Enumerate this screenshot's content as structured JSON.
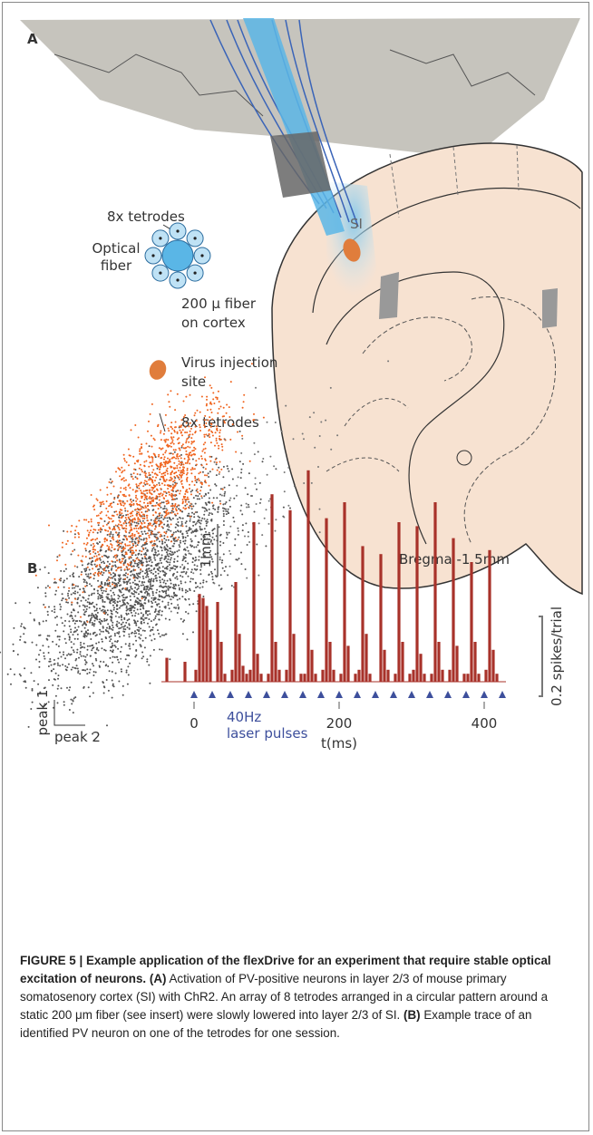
{
  "panel_a": {
    "label": "A",
    "inset_label_tetrodes": "8x tetrodes",
    "inset_label_fiber": [
      "Optical",
      "fiber"
    ],
    "legend_fiber": [
      "200 μ fiber",
      "on cortex"
    ],
    "legend_virus": [
      "Virus injection",
      "site"
    ],
    "legend_tetrodes": "8x tetrodes",
    "region": "SI",
    "scale": "1mm",
    "bregma": "Bregma -1.5mm"
  },
  "panel_b": {
    "label": "B",
    "axis_peak1": "peak 1",
    "axis_peak2": "peak 2"
  },
  "chart_data": {
    "type": "histogram",
    "color": "#a8322a",
    "pulse_color": "#3d4f9c",
    "bins": [
      -40,
      -35,
      -30,
      -25,
      -20,
      -15,
      -10,
      -5,
      0,
      5,
      10,
      15,
      20,
      25,
      30,
      35,
      40,
      45,
      50,
      55,
      60,
      65,
      70,
      75,
      80,
      85,
      90,
      95,
      100,
      105,
      110,
      115,
      120,
      125,
      130,
      135,
      140,
      145,
      150,
      155,
      160,
      165,
      170,
      175,
      180,
      185,
      190,
      195,
      200,
      205,
      210,
      215,
      220,
      225,
      230,
      235,
      240,
      245,
      250,
      255,
      260,
      265,
      270,
      275,
      280,
      285,
      290,
      295,
      300,
      305,
      310,
      315,
      320,
      325,
      330,
      335,
      340,
      345,
      350,
      355,
      360,
      365,
      370,
      375,
      380,
      385,
      390,
      395,
      400,
      405,
      410,
      415,
      420,
      425
    ],
    "values": [
      0.06,
      0,
      0,
      0,
      0,
      0.05,
      0,
      0,
      0.03,
      0.22,
      0.21,
      0.19,
      0.13,
      0,
      0.2,
      0.1,
      0.02,
      0,
      0.03,
      0.25,
      0.12,
      0.04,
      0.02,
      0.03,
      0.4,
      0.07,
      0.02,
      0,
      0.02,
      0.47,
      0.1,
      0.03,
      0,
      0.03,
      0.43,
      0.12,
      0,
      0.02,
      0.02,
      0.53,
      0.08,
      0.02,
      0,
      0.03,
      0.41,
      0.1,
      0.03,
      0,
      0.02,
      0.45,
      0.09,
      0,
      0.02,
      0.03,
      0.34,
      0.12,
      0.02,
      0,
      0,
      0.32,
      0.08,
      0.03,
      0,
      0.02,
      0.4,
      0.1,
      0,
      0.02,
      0.03,
      0.39,
      0.07,
      0.02,
      0,
      0.02,
      0.45,
      0.1,
      0.03,
      0,
      0.03,
      0.36,
      0.09,
      0,
      0.02,
      0.02,
      0.3,
      0.1,
      0.02,
      0,
      0.03,
      0.33,
      0.08,
      0.02,
      0
    ],
    "pulses": [
      0,
      25,
      50,
      75,
      100,
      125,
      150,
      175,
      200,
      225,
      250,
      275,
      300,
      325,
      350,
      375,
      400,
      425
    ],
    "pulse_label": [
      "40Hz",
      "laser pulses"
    ],
    "xlim": [
      -45,
      430
    ],
    "xticks": [
      0,
      200,
      400
    ],
    "x_label": "t(ms)",
    "ylim": [
      0,
      0.6
    ],
    "scale_bar": {
      "value": 0.2,
      "label": "0.2 spikes/trial"
    }
  },
  "caption": {
    "title": "FIGURE 5 | Example application of the flexDrive for an experiment that require stable optical excitation of neurons.",
    "a_label": "(A)",
    "a_text": "Activation of PV-positive neurons in layer 2/3 of mouse primary somatosenory cortex (SI) with ChR2. An array of 8 tetrodes arranged in a circular pattern around a static 200 μm fiber (see insert) were slowly lowered into layer 2/3 of SI.",
    "b_label": "(B)",
    "b_text": "Example trace of an identified PV neuron on one of the tetrodes for one session."
  }
}
